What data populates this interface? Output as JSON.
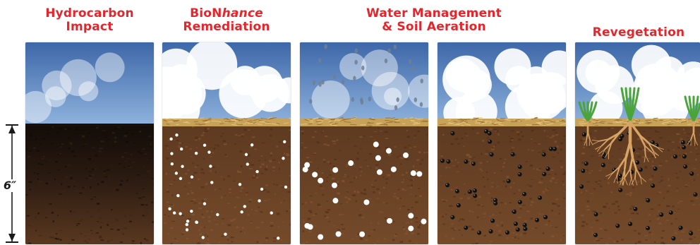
{
  "colors": {
    "title": "#e4262c",
    "sky_top": "#3d67a8",
    "sky_bottom": "#8fb3dd",
    "soil": "#6b4326",
    "soil_dark": "#2a1a10",
    "straw": "#c9a25a",
    "root": "#d8a466",
    "grass": "#4aa43a"
  },
  "panels": [
    {
      "title_lines": [
        "Hydrocarbon",
        "Impact"
      ],
      "sky": "clear",
      "soil": "contaminated",
      "particles": "none",
      "image": "contaminated-soil"
    },
    {
      "title_prefix": "BioN",
      "title_italic": "hance",
      "title_line2": "Remediation",
      "sky": "clouds",
      "soil": "mulched",
      "particles": "white",
      "image": "bionhance-applied-soil"
    },
    {
      "title_lines": [
        "Water Management",
        "& Soil Aeration"
      ],
      "sky": "rain",
      "soil": "mulched",
      "particles": "white-large",
      "image": "watered-soil"
    },
    {
      "sky": "clouds",
      "soil": "mulched",
      "particles": "black",
      "image": "aerated-soil"
    },
    {
      "title_lines": [
        "Revegetation"
      ],
      "sky": "clouds",
      "soil": "mulched",
      "particles": "black",
      "plants": true,
      "image": "revegetated-soil"
    }
  ],
  "depth_label": "6″"
}
